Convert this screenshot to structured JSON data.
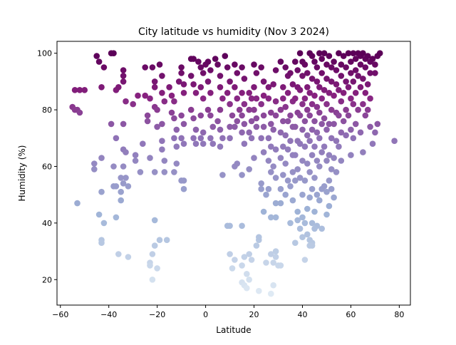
{
  "chart_data": {
    "type": "scatter",
    "title": "City latitude vs humidity (Nov 3 2024)",
    "xlabel": "Latitude",
    "ylabel": "Humidity (%)",
    "xlim": [
      -61.4,
      84.6
    ],
    "ylim": [
      11.0,
      104.2
    ],
    "xticks": [
      "−60",
      "−40",
      "−20",
      "0",
      "20",
      "40",
      "60",
      "80"
    ],
    "yticks": [
      "20",
      "40",
      "60",
      "80",
      "100"
    ],
    "xtick_values": [
      -60,
      -40,
      -20,
      0,
      20,
      40,
      60,
      80
    ],
    "ytick_values": [
      20,
      40,
      60,
      80,
      100
    ],
    "grid": false,
    "legend": "none",
    "color_encoding": "marker color follows humidity (BuPu colormap): pale blue-white at low humidity to dark purple at high humidity",
    "colors": {
      "low": "#dfeaf4",
      "mid_low": "#9db1d6",
      "mid": "#8f72b6",
      "mid_high": "#87217f",
      "high": "#5b0058"
    },
    "points": [
      [
        -55,
        81
      ],
      [
        -54,
        80
      ],
      [
        -53,
        80
      ],
      [
        -52,
        79
      ],
      [
        -54,
        87
      ],
      [
        -52,
        87
      ],
      [
        -50,
        87
      ],
      [
        -53,
        47
      ],
      [
        -46,
        59
      ],
      [
        -46,
        61
      ],
      [
        -45,
        99
      ],
      [
        -44,
        97
      ],
      [
        -43,
        88
      ],
      [
        -42,
        95
      ],
      [
        -43,
        63
      ],
      [
        -43,
        51
      ],
      [
        -44,
        43
      ],
      [
        -42,
        40
      ],
      [
        -43,
        34
      ],
      [
        -43,
        33
      ],
      [
        -39,
        100
      ],
      [
        -38,
        100
      ],
      [
        -39,
        75
      ],
      [
        -37,
        87
      ],
      [
        -36,
        88
      ],
      [
        -37,
        70
      ],
      [
        -38,
        60
      ],
      [
        -38,
        53
      ],
      [
        -37,
        53
      ],
      [
        -37,
        42
      ],
      [
        -36,
        29
      ],
      [
        -34,
        94
      ],
      [
        -34,
        92
      ],
      [
        -34,
        90
      ],
      [
        -33,
        83
      ],
      [
        -34,
        75
      ],
      [
        -34,
        66
      ],
      [
        -33,
        65
      ],
      [
        -34,
        60
      ],
      [
        -35,
        56
      ],
      [
        -33,
        56
      ],
      [
        -34,
        54
      ],
      [
        -32,
        53
      ],
      [
        -35,
        51
      ],
      [
        -35,
        48
      ],
      [
        -32,
        28
      ],
      [
        -30,
        82
      ],
      [
        -28,
        85
      ],
      [
        -29,
        64
      ],
      [
        -29,
        62
      ],
      [
        -27,
        58
      ],
      [
        -26,
        68
      ],
      [
        -25,
        95
      ],
      [
        -25,
        85
      ],
      [
        -24,
        78
      ],
      [
        -24,
        76
      ],
      [
        -23,
        84
      ],
      [
        -23,
        63
      ],
      [
        -22,
        95
      ],
      [
        -21,
        90
      ],
      [
        -21,
        88
      ],
      [
        -21,
        81
      ],
      [
        -20,
        80
      ],
      [
        -20,
        74
      ],
      [
        -21,
        58
      ],
      [
        -21,
        41
      ],
      [
        -21,
        32
      ],
      [
        -22,
        29
      ],
      [
        -20,
        24
      ],
      [
        -23,
        26
      ],
      [
        -23,
        25
      ],
      [
        -22,
        20
      ],
      [
        -19,
        96
      ],
      [
        -18,
        92
      ],
      [
        -18,
        86
      ],
      [
        -17,
        83
      ],
      [
        -18,
        75
      ],
      [
        -18,
        69
      ],
      [
        -18,
        66
      ],
      [
        -17,
        62
      ],
      [
        -17,
        58
      ],
      [
        -19,
        34
      ],
      [
        -16,
        34
      ],
      [
        -15,
        88
      ],
      [
        -14,
        85
      ],
      [
        -13,
        83
      ],
      [
        -14,
        79
      ],
      [
        -13,
        77
      ],
      [
        -12,
        73
      ],
      [
        -13,
        70
      ],
      [
        -12,
        67
      ],
      [
        -12,
        61
      ],
      [
        -13,
        58
      ],
      [
        -11,
        90
      ],
      [
        -10,
        95
      ],
      [
        -10,
        93
      ],
      [
        -9,
        89
      ],
      [
        -9,
        86
      ],
      [
        -10,
        78
      ],
      [
        -9,
        75
      ],
      [
        -10,
        70
      ],
      [
        -9,
        68
      ],
      [
        -10,
        55
      ],
      [
        -9,
        55
      ],
      [
        -9,
        52
      ],
      [
        -6,
        98
      ],
      [
        -5,
        98
      ],
      [
        -6,
        92
      ],
      [
        -5,
        89
      ],
      [
        -4,
        86
      ],
      [
        -6,
        80
      ],
      [
        -5,
        77
      ],
      [
        -4,
        73
      ],
      [
        -5,
        70
      ],
      [
        -4,
        68
      ],
      [
        -3,
        97
      ],
      [
        -2,
        95
      ],
      [
        -1,
        93
      ],
      [
        -2,
        88
      ],
      [
        -1,
        84
      ],
      [
        -2,
        78
      ],
      [
        -1,
        72
      ],
      [
        -2,
        70
      ],
      [
        -1,
        68
      ],
      [
        0,
        96
      ],
      [
        1,
        97
      ],
      [
        2,
        94
      ],
      [
        1,
        90
      ],
      [
        2,
        86
      ],
      [
        1,
        80
      ],
      [
        2,
        78
      ],
      [
        3,
        74
      ],
      [
        2,
        70
      ],
      [
        3,
        68
      ],
      [
        4,
        98
      ],
      [
        5,
        96
      ],
      [
        6,
        92
      ],
      [
        6,
        88
      ],
      [
        7,
        84
      ],
      [
        6,
        80
      ],
      [
        5,
        76
      ],
      [
        6,
        73
      ],
      [
        7,
        70
      ],
      [
        6,
        67
      ],
      [
        7,
        57
      ],
      [
        8,
        99
      ],
      [
        9,
        95
      ],
      [
        10,
        90
      ],
      [
        9,
        86
      ],
      [
        10,
        82
      ],
      [
        11,
        78
      ],
      [
        10,
        74
      ],
      [
        10,
        70
      ],
      [
        9,
        39
      ],
      [
        10,
        39
      ],
      [
        10,
        29
      ],
      [
        12,
        96
      ],
      [
        13,
        93
      ],
      [
        12,
        88
      ],
      [
        13,
        84
      ],
      [
        14,
        80
      ],
      [
        13,
        76
      ],
      [
        12,
        74
      ],
      [
        12,
        60
      ],
      [
        13,
        61
      ],
      [
        11,
        24
      ],
      [
        12,
        27
      ],
      [
        15,
        95
      ],
      [
        16,
        91
      ],
      [
        15,
        86
      ],
      [
        16,
        82
      ],
      [
        15,
        78
      ],
      [
        16,
        75
      ],
      [
        15,
        72
      ],
      [
        16,
        68
      ],
      [
        15,
        57
      ],
      [
        15,
        39
      ],
      [
        16,
        28
      ],
      [
        15,
        19
      ],
      [
        16,
        18
      ],
      [
        17,
        17
      ],
      [
        17,
        22
      ],
      [
        15,
        25
      ],
      [
        18,
        86
      ],
      [
        19,
        84
      ],
      [
        18,
        80
      ],
      [
        19,
        76
      ],
      [
        18,
        72
      ],
      [
        19,
        70
      ],
      [
        18,
        59
      ],
      [
        18,
        29
      ],
      [
        19,
        27
      ],
      [
        18,
        20
      ],
      [
        20,
        96
      ],
      [
        21,
        93
      ],
      [
        20,
        88
      ],
      [
        21,
        84
      ],
      [
        20,
        80
      ],
      [
        21,
        77
      ],
      [
        21,
        74
      ],
      [
        20,
        63
      ],
      [
        21,
        32
      ],
      [
        22,
        34
      ],
      [
        22,
        35
      ],
      [
        22,
        16
      ],
      [
        23,
        95
      ],
      [
        24,
        90
      ],
      [
        24,
        85
      ],
      [
        23,
        82
      ],
      [
        24,
        78
      ],
      [
        24,
        74
      ],
      [
        23,
        70
      ],
      [
        24,
        65
      ],
      [
        23,
        54
      ],
      [
        23,
        52
      ],
      [
        24,
        44
      ],
      [
        25,
        50
      ],
      [
        25,
        26
      ],
      [
        26,
        88
      ],
      [
        26,
        84
      ],
      [
        27,
        79
      ],
      [
        27,
        75
      ],
      [
        26,
        70
      ],
      [
        27,
        67
      ],
      [
        26,
        62
      ],
      [
        27,
        58
      ],
      [
        26,
        52
      ],
      [
        27,
        42
      ],
      [
        27,
        29
      ],
      [
        28,
        26
      ],
      [
        28,
        18
      ],
      [
        27,
        15
      ],
      [
        28,
        89
      ],
      [
        29,
        94
      ],
      [
        29,
        83
      ],
      [
        29,
        78
      ],
      [
        28,
        73
      ],
      [
        29,
        66
      ],
      [
        28,
        60
      ],
      [
        29,
        56
      ],
      [
        29,
        47
      ],
      [
        29,
        42
      ],
      [
        29,
        30
      ],
      [
        29,
        28
      ],
      [
        30,
        25
      ],
      [
        31,
        97
      ],
      [
        32,
        88
      ],
      [
        32,
        84
      ],
      [
        31,
        80
      ],
      [
        32,
        76
      ],
      [
        31,
        72
      ],
      [
        32,
        67
      ],
      [
        31,
        63
      ],
      [
        32,
        57
      ],
      [
        31,
        52
      ],
      [
        31,
        47
      ],
      [
        31,
        25
      ],
      [
        33,
        95
      ],
      [
        34,
        92
      ],
      [
        34,
        86
      ],
      [
        33,
        81
      ],
      [
        34,
        76
      ],
      [
        33,
        71
      ],
      [
        34,
        66
      ],
      [
        33,
        61
      ],
      [
        34,
        55
      ],
      [
        33,
        50
      ],
      [
        35,
        93
      ],
      [
        36,
        89
      ],
      [
        36,
        83
      ],
      [
        35,
        78
      ],
      [
        36,
        74
      ],
      [
        35,
        69
      ],
      [
        36,
        64
      ],
      [
        36,
        58
      ],
      [
        35,
        53
      ],
      [
        36,
        48
      ],
      [
        35,
        40
      ],
      [
        37,
        97
      ],
      [
        38,
        94
      ],
      [
        38,
        88
      ],
      [
        37,
        84
      ],
      [
        38,
        79
      ],
      [
        37,
        74
      ],
      [
        38,
        69
      ],
      [
        37,
        64
      ],
      [
        38,
        59
      ],
      [
        37,
        55
      ],
      [
        38,
        44
      ],
      [
        38,
        41
      ],
      [
        37,
        33
      ],
      [
        39,
        100
      ],
      [
        40,
        97
      ],
      [
        40,
        92
      ],
      [
        39,
        87
      ],
      [
        40,
        82
      ],
      [
        39,
        78
      ],
      [
        40,
        73
      ],
      [
        39,
        68
      ],
      [
        40,
        62
      ],
      [
        39,
        56
      ],
      [
        40,
        50
      ],
      [
        40,
        42
      ],
      [
        39,
        38
      ],
      [
        40,
        35
      ],
      [
        41,
        96
      ],
      [
        42,
        93
      ],
      [
        42,
        88
      ],
      [
        41,
        84
      ],
      [
        42,
        80
      ],
      [
        41,
        76
      ],
      [
        42,
        71
      ],
      [
        41,
        67
      ],
      [
        42,
        61
      ],
      [
        41,
        55
      ],
      [
        42,
        45
      ],
      [
        41,
        40
      ],
      [
        42,
        36
      ],
      [
        41,
        27
      ],
      [
        43,
        100
      ],
      [
        44,
        99
      ],
      [
        44,
        91
      ],
      [
        43,
        86
      ],
      [
        44,
        82
      ],
      [
        43,
        78
      ],
      [
        44,
        73
      ],
      [
        43,
        69
      ],
      [
        44,
        64
      ],
      [
        43,
        58
      ],
      [
        44,
        52
      ],
      [
        43,
        49
      ],
      [
        44,
        40
      ],
      [
        43,
        34
      ],
      [
        44,
        33
      ],
      [
        43,
        32
      ],
      [
        44,
        32
      ],
      [
        45,
        97
      ],
      [
        46,
        95
      ],
      [
        46,
        90
      ],
      [
        45,
        85
      ],
      [
        46,
        81
      ],
      [
        45,
        76
      ],
      [
        46,
        72
      ],
      [
        45,
        67
      ],
      [
        46,
        62
      ],
      [
        45,
        56
      ],
      [
        46,
        50
      ],
      [
        45,
        44
      ],
      [
        46,
        39
      ],
      [
        45,
        38
      ],
      [
        47,
        100
      ],
      [
        48,
        98
      ],
      [
        48,
        93
      ],
      [
        47,
        88
      ],
      [
        48,
        84
      ],
      [
        47,
        79
      ],
      [
        48,
        75
      ],
      [
        47,
        70
      ],
      [
        48,
        65
      ],
      [
        47,
        60
      ],
      [
        48,
        52
      ],
      [
        47,
        48
      ],
      [
        48,
        38
      ],
      [
        49,
        100
      ],
      [
        50,
        96
      ],
      [
        50,
        91
      ],
      [
        49,
        87
      ],
      [
        50,
        82
      ],
      [
        49,
        77
      ],
      [
        50,
        73
      ],
      [
        49,
        67
      ],
      [
        50,
        62
      ],
      [
        49,
        53
      ],
      [
        50,
        51
      ],
      [
        51,
        46
      ],
      [
        50,
        43
      ],
      [
        51,
        99
      ],
      [
        52,
        95
      ],
      [
        52,
        90
      ],
      [
        51,
        86
      ],
      [
        52,
        80
      ],
      [
        51,
        75
      ],
      [
        52,
        70
      ],
      [
        51,
        64
      ],
      [
        52,
        59
      ],
      [
        51,
        55
      ],
      [
        52,
        52
      ],
      [
        53,
        97
      ],
      [
        54,
        94
      ],
      [
        54,
        89
      ],
      [
        53,
        85
      ],
      [
        54,
        79
      ],
      [
        53,
        75
      ],
      [
        54,
        69
      ],
      [
        53,
        63
      ],
      [
        54,
        58
      ],
      [
        53,
        49
      ],
      [
        55,
        100
      ],
      [
        56,
        96
      ],
      [
        56,
        92
      ],
      [
        55,
        87
      ],
      [
        56,
        83
      ],
      [
        55,
        78
      ],
      [
        56,
        72
      ],
      [
        55,
        67
      ],
      [
        56,
        62
      ],
      [
        57,
        99
      ],
      [
        58,
        95
      ],
      [
        58,
        90
      ],
      [
        57,
        86
      ],
      [
        58,
        80
      ],
      [
        57,
        76
      ],
      [
        58,
        71
      ],
      [
        59,
        100
      ],
      [
        60,
        97
      ],
      [
        60,
        93
      ],
      [
        59,
        88
      ],
      [
        60,
        84
      ],
      [
        59,
        78
      ],
      [
        60,
        73
      ],
      [
        60,
        64
      ],
      [
        61,
        100
      ],
      [
        62,
        98
      ],
      [
        62,
        94
      ],
      [
        61,
        90
      ],
      [
        62,
        86
      ],
      [
        61,
        82
      ],
      [
        62,
        75
      ],
      [
        61,
        70
      ],
      [
        63,
        100
      ],
      [
        64,
        99
      ],
      [
        64,
        96
      ],
      [
        63,
        92
      ],
      [
        64,
        88
      ],
      [
        63,
        80
      ],
      [
        64,
        72
      ],
      [
        65,
        100
      ],
      [
        66,
        98
      ],
      [
        66,
        95
      ],
      [
        65,
        91
      ],
      [
        66,
        86
      ],
      [
        65,
        82
      ],
      [
        66,
        78
      ],
      [
        65,
        65
      ],
      [
        67,
        99
      ],
      [
        68,
        97
      ],
      [
        68,
        93
      ],
      [
        67,
        89
      ],
      [
        68,
        84
      ],
      [
        67,
        80
      ],
      [
        68,
        74
      ],
      [
        69,
        68
      ],
      [
        69,
        98
      ],
      [
        70,
        96
      ],
      [
        70,
        93
      ],
      [
        71,
        99
      ],
      [
        72,
        100
      ],
      [
        71,
        75
      ],
      [
        70,
        72
      ],
      [
        78,
        69
      ]
    ]
  }
}
